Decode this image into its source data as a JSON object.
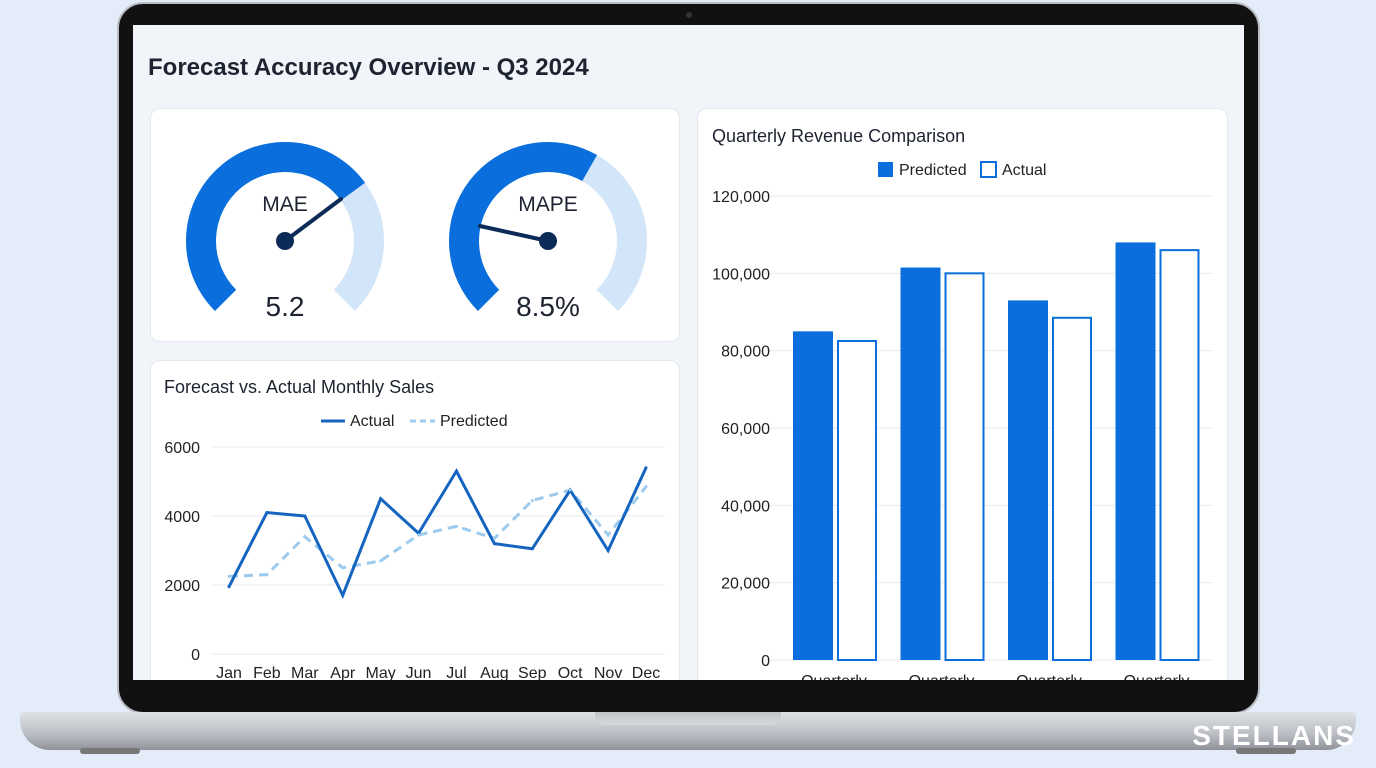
{
  "dashboard": {
    "title": "Forecast Accuracy Overview - Q3 2024"
  },
  "gauges": [
    {
      "label": "MAE",
      "value": "5.2",
      "fill": 0.7
    },
    {
      "label": "MAPE",
      "value": "8.5%",
      "fill": 0.61
    }
  ],
  "colors": {
    "primary": "#0a6fdc",
    "light": "#d3e5f8",
    "dashed": "#9ccbef",
    "line": "#1565c0"
  },
  "watermark": "STELLANS",
  "chart_data": [
    {
      "type": "line",
      "title": "Forecast vs. Actual Monthly Sales",
      "categories": [
        "Jan",
        "Feb",
        "Mar",
        "Apr",
        "May",
        "Jun",
        "Jul",
        "Aug",
        "Sep",
        "Oct",
        "Nov",
        "Dec"
      ],
      "series": [
        {
          "name": "Actual",
          "values": [
            1950,
            4100,
            4000,
            1700,
            4500,
            3500,
            5300,
            3200,
            3050,
            4750,
            3000,
            5400
          ]
        },
        {
          "name": "Predicted",
          "values": [
            2250,
            2300,
            3400,
            2500,
            2700,
            3450,
            3700,
            3350,
            4450,
            4750,
            3450,
            4850
          ]
        }
      ],
      "yticks": [
        "6000",
        "4000",
        "2000",
        "0"
      ],
      "ylim": [
        0,
        6000
      ],
      "legend": "top-center"
    },
    {
      "type": "bar",
      "title": "Quarterly Revenue Comparison",
      "categories": [
        "Quarterly",
        "Quarterly",
        "Quarterly",
        "Quarterly"
      ],
      "series": [
        {
          "name": "Predicted",
          "values": [
            85000,
            101500,
            93000,
            108000
          ]
        },
        {
          "name": "Actual",
          "values": [
            82500,
            100000,
            88500,
            106000
          ]
        }
      ],
      "yticks": [
        "120,000",
        "100,000",
        "80,000",
        "60,000",
        "40,000",
        "20,000",
        "0"
      ],
      "ylim": [
        0,
        120000
      ],
      "legend": "top-center"
    }
  ]
}
